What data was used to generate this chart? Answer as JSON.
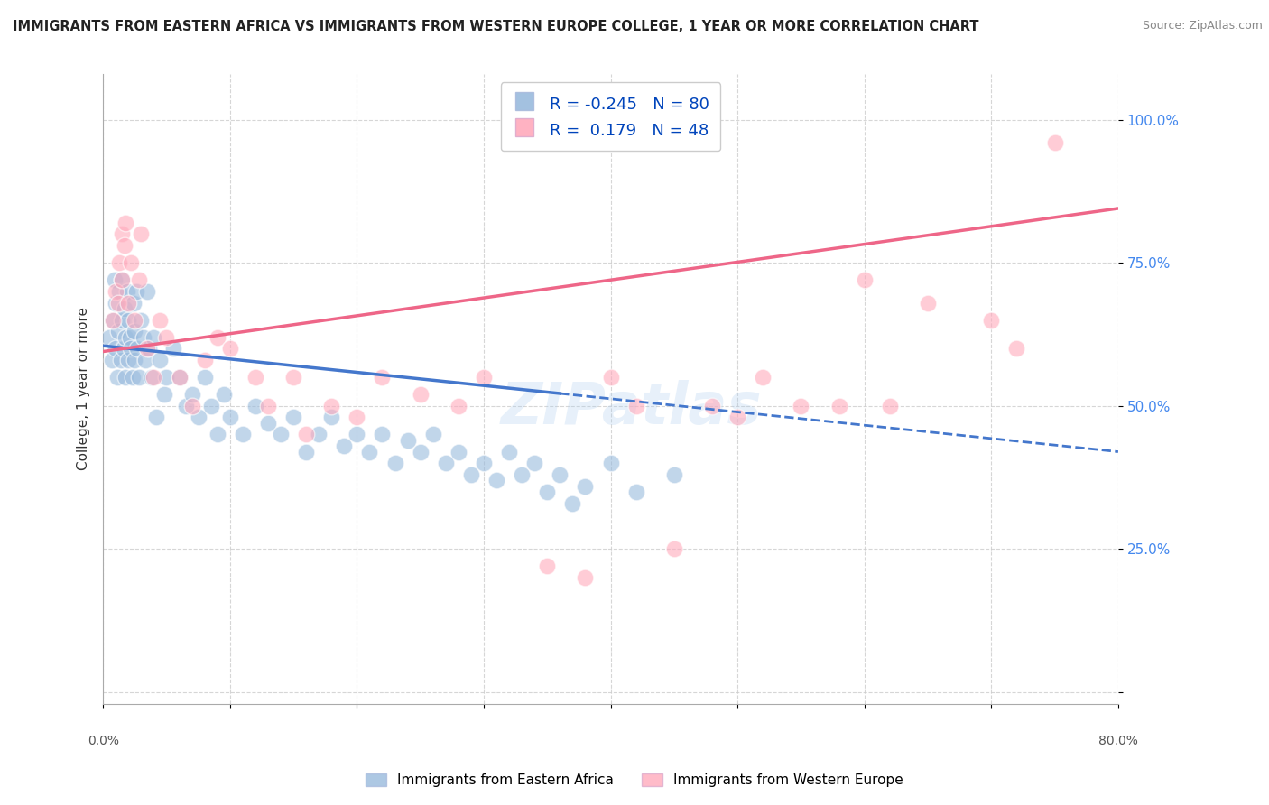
{
  "title": "IMMIGRANTS FROM EASTERN AFRICA VS IMMIGRANTS FROM WESTERN EUROPE COLLEGE, 1 YEAR OR MORE CORRELATION CHART",
  "source": "Source: ZipAtlas.com",
  "ylabel": "College, 1 year or more",
  "ytick_values": [
    0.0,
    0.25,
    0.5,
    0.75,
    1.0
  ],
  "ytick_labels": [
    "",
    "25.0%",
    "50.0%",
    "75.0%",
    "100.0%"
  ],
  "xlim": [
    0.0,
    0.8
  ],
  "ylim": [
    -0.02,
    1.08
  ],
  "legend_labels": [
    "Immigrants from Eastern Africa",
    "Immigrants from Western Europe"
  ],
  "R_blue": -0.245,
  "N_blue": 80,
  "R_pink": 0.179,
  "N_pink": 48,
  "blue_color": "#99BBDD",
  "pink_color": "#FFAABC",
  "blue_line_color": "#4477CC",
  "pink_line_color": "#EE6688",
  "watermark": "ZIPatlas",
  "blue_line_x0": 0.0,
  "blue_line_y0": 0.605,
  "blue_line_x1": 0.8,
  "blue_line_y1": 0.42,
  "pink_line_x0": 0.0,
  "pink_line_y0": 0.595,
  "pink_line_x1": 0.8,
  "pink_line_y1": 0.845,
  "blue_scatter_x": [
    0.005,
    0.007,
    0.008,
    0.009,
    0.01,
    0.01,
    0.011,
    0.012,
    0.013,
    0.014,
    0.015,
    0.015,
    0.016,
    0.017,
    0.018,
    0.018,
    0.019,
    0.02,
    0.02,
    0.021,
    0.022,
    0.023,
    0.024,
    0.025,
    0.025,
    0.026,
    0.027,
    0.028,
    0.03,
    0.032,
    0.033,
    0.035,
    0.036,
    0.038,
    0.04,
    0.042,
    0.045,
    0.048,
    0.05,
    0.055,
    0.06,
    0.065,
    0.07,
    0.075,
    0.08,
    0.085,
    0.09,
    0.095,
    0.1,
    0.11,
    0.12,
    0.13,
    0.14,
    0.15,
    0.16,
    0.17,
    0.18,
    0.19,
    0.2,
    0.21,
    0.22,
    0.23,
    0.24,
    0.25,
    0.26,
    0.27,
    0.28,
    0.29,
    0.3,
    0.31,
    0.32,
    0.33,
    0.34,
    0.35,
    0.36,
    0.37,
    0.38,
    0.4,
    0.42,
    0.45
  ],
  "blue_scatter_y": [
    0.62,
    0.58,
    0.65,
    0.72,
    0.6,
    0.68,
    0.55,
    0.63,
    0.7,
    0.58,
    0.65,
    0.72,
    0.6,
    0.67,
    0.55,
    0.62,
    0.7,
    0.58,
    0.65,
    0.62,
    0.6,
    0.55,
    0.68,
    0.63,
    0.58,
    0.7,
    0.6,
    0.55,
    0.65,
    0.62,
    0.58,
    0.7,
    0.6,
    0.55,
    0.62,
    0.48,
    0.58,
    0.52,
    0.55,
    0.6,
    0.55,
    0.5,
    0.52,
    0.48,
    0.55,
    0.5,
    0.45,
    0.52,
    0.48,
    0.45,
    0.5,
    0.47,
    0.45,
    0.48,
    0.42,
    0.45,
    0.48,
    0.43,
    0.45,
    0.42,
    0.45,
    0.4,
    0.44,
    0.42,
    0.45,
    0.4,
    0.42,
    0.38,
    0.4,
    0.37,
    0.42,
    0.38,
    0.4,
    0.35,
    0.38,
    0.33,
    0.36,
    0.4,
    0.35,
    0.38
  ],
  "pink_scatter_x": [
    0.008,
    0.01,
    0.012,
    0.013,
    0.015,
    0.015,
    0.017,
    0.018,
    0.02,
    0.022,
    0.025,
    0.028,
    0.03,
    0.035,
    0.04,
    0.045,
    0.05,
    0.06,
    0.07,
    0.08,
    0.09,
    0.1,
    0.12,
    0.13,
    0.15,
    0.16,
    0.18,
    0.2,
    0.22,
    0.25,
    0.28,
    0.3,
    0.35,
    0.38,
    0.4,
    0.42,
    0.45,
    0.48,
    0.5,
    0.52,
    0.55,
    0.58,
    0.6,
    0.62,
    0.65,
    0.7,
    0.72,
    0.75
  ],
  "pink_scatter_y": [
    0.65,
    0.7,
    0.68,
    0.75,
    0.8,
    0.72,
    0.78,
    0.82,
    0.68,
    0.75,
    0.65,
    0.72,
    0.8,
    0.6,
    0.55,
    0.65,
    0.62,
    0.55,
    0.5,
    0.58,
    0.62,
    0.6,
    0.55,
    0.5,
    0.55,
    0.45,
    0.5,
    0.48,
    0.55,
    0.52,
    0.5,
    0.55,
    0.22,
    0.2,
    0.55,
    0.5,
    0.25,
    0.5,
    0.48,
    0.55,
    0.5,
    0.5,
    0.72,
    0.5,
    0.68,
    0.65,
    0.6,
    0.96
  ]
}
